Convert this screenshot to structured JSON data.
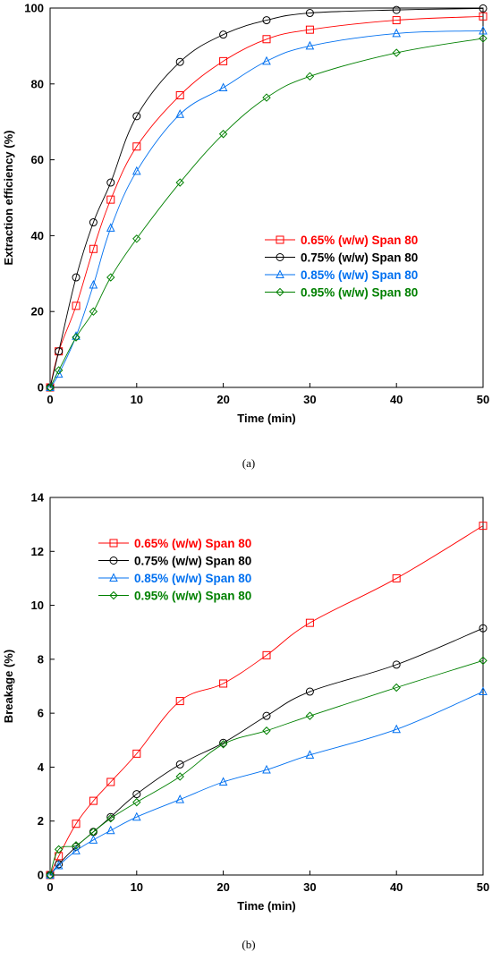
{
  "chart_data": [
    {
      "type": "line",
      "panel_label": "(a)",
      "xlabel": "Time (min)",
      "ylabel": "Extraction efficiency (%)",
      "xlim": [
        0,
        50
      ],
      "ylim": [
        0,
        100
      ],
      "xticks": [
        0,
        10,
        20,
        30,
        40,
        50
      ],
      "yticks": [
        0,
        20,
        40,
        60,
        80,
        100
      ],
      "grid": false,
      "legend_placement": "center-right",
      "x": [
        0,
        1,
        3,
        5,
        7,
        10,
        15,
        20,
        25,
        30,
        40,
        50
      ],
      "series": [
        {
          "name": "0.65% (w/w) Span 80",
          "marker": "square",
          "color": "#ff0000",
          "values": [
            0,
            9.5,
            21.5,
            36.5,
            49.5,
            63.5,
            77,
            86,
            91.8,
            94.3,
            96.8,
            97.8
          ]
        },
        {
          "name": "0.75% (w/w) Span 80",
          "marker": "circle",
          "color": "#000000",
          "values": [
            0,
            9.5,
            29,
            43.5,
            54,
            71.5,
            85.8,
            93,
            96.8,
            98.7,
            99.5,
            99.9
          ]
        },
        {
          "name": "0.85% (w/w) Span 80",
          "marker": "triangle",
          "color": "#0070f0",
          "values": [
            0,
            3.5,
            13.5,
            27,
            42,
            57,
            72,
            79,
            86,
            90,
            93.3,
            94
          ]
        },
        {
          "name": "0.95% (w/w) Span 80",
          "marker": "diamond",
          "color": "#008000",
          "values": [
            0,
            4.5,
            13.2,
            20,
            29,
            39.2,
            54,
            66.8,
            76.4,
            82,
            88.2,
            92
          ]
        }
      ]
    },
    {
      "type": "line",
      "panel_label": "(b)",
      "xlabel": "Time (min)",
      "ylabel": "Breakage (%)",
      "xlim": [
        0,
        50
      ],
      "ylim": [
        0,
        14
      ],
      "xticks": [
        0,
        10,
        20,
        30,
        40,
        50
      ],
      "yticks": [
        0,
        2,
        4,
        6,
        8,
        10,
        12,
        14
      ],
      "grid": false,
      "legend_placement": "top-left",
      "x": [
        0,
        1,
        3,
        5,
        7,
        10,
        15,
        20,
        25,
        30,
        40,
        50
      ],
      "series": [
        {
          "name": "0.65% (w/w) Span 80",
          "marker": "square",
          "color": "#ff0000",
          "values": [
            0,
            0.7,
            1.9,
            2.75,
            3.45,
            4.5,
            6.45,
            7.1,
            8.15,
            9.35,
            11,
            12.95
          ]
        },
        {
          "name": "0.75% (w/w) Span 80",
          "marker": "circle",
          "color": "#000000",
          "values": [
            0,
            0.4,
            1.05,
            1.6,
            2.15,
            3,
            4.1,
            4.9,
            5.9,
            6.8,
            7.8,
            9.15
          ]
        },
        {
          "name": "0.85% (w/w) Span 80",
          "marker": "triangle",
          "color": "#0070f0",
          "values": [
            0,
            0.35,
            0.9,
            1.3,
            1.65,
            2.15,
            2.8,
            3.45,
            3.9,
            4.45,
            5.4,
            6.8
          ]
        },
        {
          "name": "0.95% (w/w) Span 80",
          "marker": "diamond",
          "color": "#008000",
          "values": [
            0,
            0.95,
            1.1,
            1.6,
            2.1,
            2.7,
            3.65,
            4.85,
            5.35,
            5.9,
            6.95,
            7.95
          ]
        }
      ]
    }
  ]
}
